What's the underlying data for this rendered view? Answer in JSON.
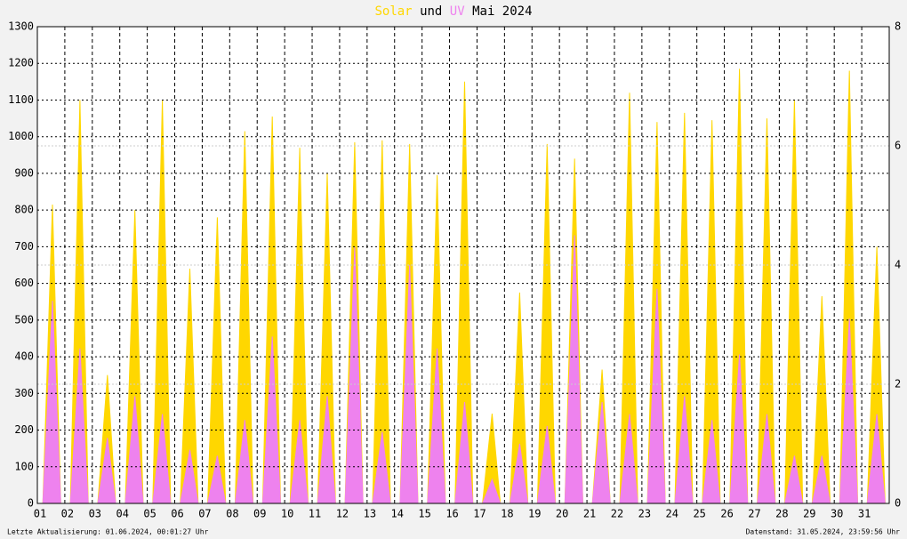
{
  "chart_data": {
    "type": "area",
    "title_connector": "und",
    "title_period": "Mai 2024",
    "footer_left": "Letzte Aktualisierung: 01.06.2024, 00:01:27 Uhr",
    "footer_right": "Datenstand: 31.05.2024, 23:59:56 Uhr",
    "x": [
      1.2,
      1.55,
      1.85,
      2.2,
      2.55,
      2.85,
      3.2,
      3.55,
      3.85,
      4.2,
      4.55,
      4.85,
      5.2,
      5.55,
      5.85,
      6.2,
      6.55,
      6.85,
      7.2,
      7.55,
      7.85,
      8.2,
      8.55,
      8.85,
      9.2,
      9.55,
      9.85,
      10.2,
      10.55,
      10.85,
      11.2,
      11.55,
      11.85,
      12.2,
      12.55,
      12.85,
      13.2,
      13.55,
      13.85,
      14.2,
      14.55,
      14.85,
      15.2,
      15.55,
      15.85,
      16.2,
      16.55,
      16.85,
      17.2,
      17.55,
      17.85,
      18.2,
      18.55,
      18.85,
      19.2,
      19.55,
      19.85,
      20.2,
      20.55,
      20.85,
      21.2,
      21.55,
      21.85,
      22.2,
      22.55,
      22.85,
      23.2,
      23.55,
      23.85,
      24.2,
      24.55,
      24.85,
      25.2,
      25.55,
      25.85,
      26.2,
      26.55,
      26.85,
      27.2,
      27.55,
      27.85,
      28.2,
      28.55,
      28.85,
      29.2,
      29.55,
      29.85,
      30.2,
      30.55,
      30.85,
      31.2,
      31.55,
      31.85
    ],
    "series": [
      {
        "name": "Solar",
        "color": "#ffd700",
        "values": [
          0,
          815,
          0,
          0,
          1100,
          0,
          0,
          350,
          0,
          0,
          800,
          0,
          0,
          1100,
          0,
          0,
          640,
          0,
          0,
          780,
          0,
          0,
          1015,
          0,
          0,
          1055,
          0,
          0,
          970,
          0,
          0,
          900,
          0,
          0,
          985,
          0,
          0,
          990,
          0,
          0,
          980,
          0,
          0,
          895,
          0,
          0,
          1150,
          0,
          0,
          245,
          0,
          0,
          575,
          0,
          0,
          980,
          0,
          0,
          940,
          0,
          0,
          365,
          0,
          0,
          1120,
          0,
          0,
          1040,
          0,
          0,
          1065,
          0,
          0,
          1045,
          0,
          0,
          1185,
          0,
          0,
          1050,
          0,
          0,
          1100,
          0,
          0,
          565,
          0,
          0,
          1180,
          0,
          0,
          700,
          0
        ]
      },
      {
        "name": "UV",
        "color": "#ee82ee",
        "axis": "y2",
        "values": [
          0,
          3.4,
          0,
          0,
          2.6,
          0,
          0,
          1.1,
          0,
          0,
          1.8,
          0,
          0,
          1.5,
          0,
          0,
          0.9,
          0,
          0,
          0.8,
          0,
          0,
          1.4,
          0,
          0,
          2.8,
          0,
          0,
          1.4,
          0,
          0,
          1.8,
          0,
          0,
          4.3,
          0,
          0,
          1.2,
          0,
          0,
          4.0,
          0,
          0,
          2.6,
          0,
          0,
          1.7,
          0,
          0,
          0.4,
          0,
          0,
          1.0,
          0,
          0,
          1.3,
          0,
          0,
          4.5,
          0,
          0,
          1.7,
          0,
          0,
          1.5,
          0,
          0,
          3.6,
          0,
          0,
          1.8,
          0,
          0,
          1.4,
          0,
          0,
          2.5,
          0,
          0,
          1.5,
          0,
          0,
          0.8,
          0,
          0,
          0.8,
          0,
          0,
          3.1,
          0,
          0,
          1.5,
          0
        ]
      }
    ],
    "xlim": [
      1,
      32
    ],
    "xticks": [
      {
        "value": 1,
        "label": "01"
      },
      {
        "value": 2,
        "label": "02"
      },
      {
        "value": 3,
        "label": "03"
      },
      {
        "value": 4,
        "label": "04"
      },
      {
        "value": 5,
        "label": "05"
      },
      {
        "value": 6,
        "label": "06"
      },
      {
        "value": 7,
        "label": "07"
      },
      {
        "value": 8,
        "label": "08"
      },
      {
        "value": 9,
        "label": "09"
      },
      {
        "value": 10,
        "label": "10"
      },
      {
        "value": 11,
        "label": "11"
      },
      {
        "value": 12,
        "label": "12"
      },
      {
        "value": 13,
        "label": "13"
      },
      {
        "value": 14,
        "label": "14"
      },
      {
        "value": 15,
        "label": "15"
      },
      {
        "value": 16,
        "label": "16"
      },
      {
        "value": 17,
        "label": "17"
      },
      {
        "value": 18,
        "label": "18"
      },
      {
        "value": 19,
        "label": "19"
      },
      {
        "value": 20,
        "label": "20"
      },
      {
        "value": 21,
        "label": "21"
      },
      {
        "value": 22,
        "label": "22"
      },
      {
        "value": 23,
        "label": "23"
      },
      {
        "value": 24,
        "label": "24"
      },
      {
        "value": 25,
        "label": "25"
      },
      {
        "value": 26,
        "label": "26"
      },
      {
        "value": 27,
        "label": "27"
      },
      {
        "value": 28,
        "label": "28"
      },
      {
        "value": 29,
        "label": "29"
      },
      {
        "value": 30,
        "label": "30"
      },
      {
        "value": 31,
        "label": "31"
      }
    ],
    "ylim": [
      0,
      1300
    ],
    "yticks": [
      0,
      100,
      200,
      300,
      400,
      500,
      600,
      700,
      800,
      900,
      1000,
      1100,
      1200,
      1300
    ],
    "y2lim": [
      0,
      8
    ],
    "y2ticks": [
      0,
      2,
      4,
      6,
      8
    ],
    "grid": true
  }
}
